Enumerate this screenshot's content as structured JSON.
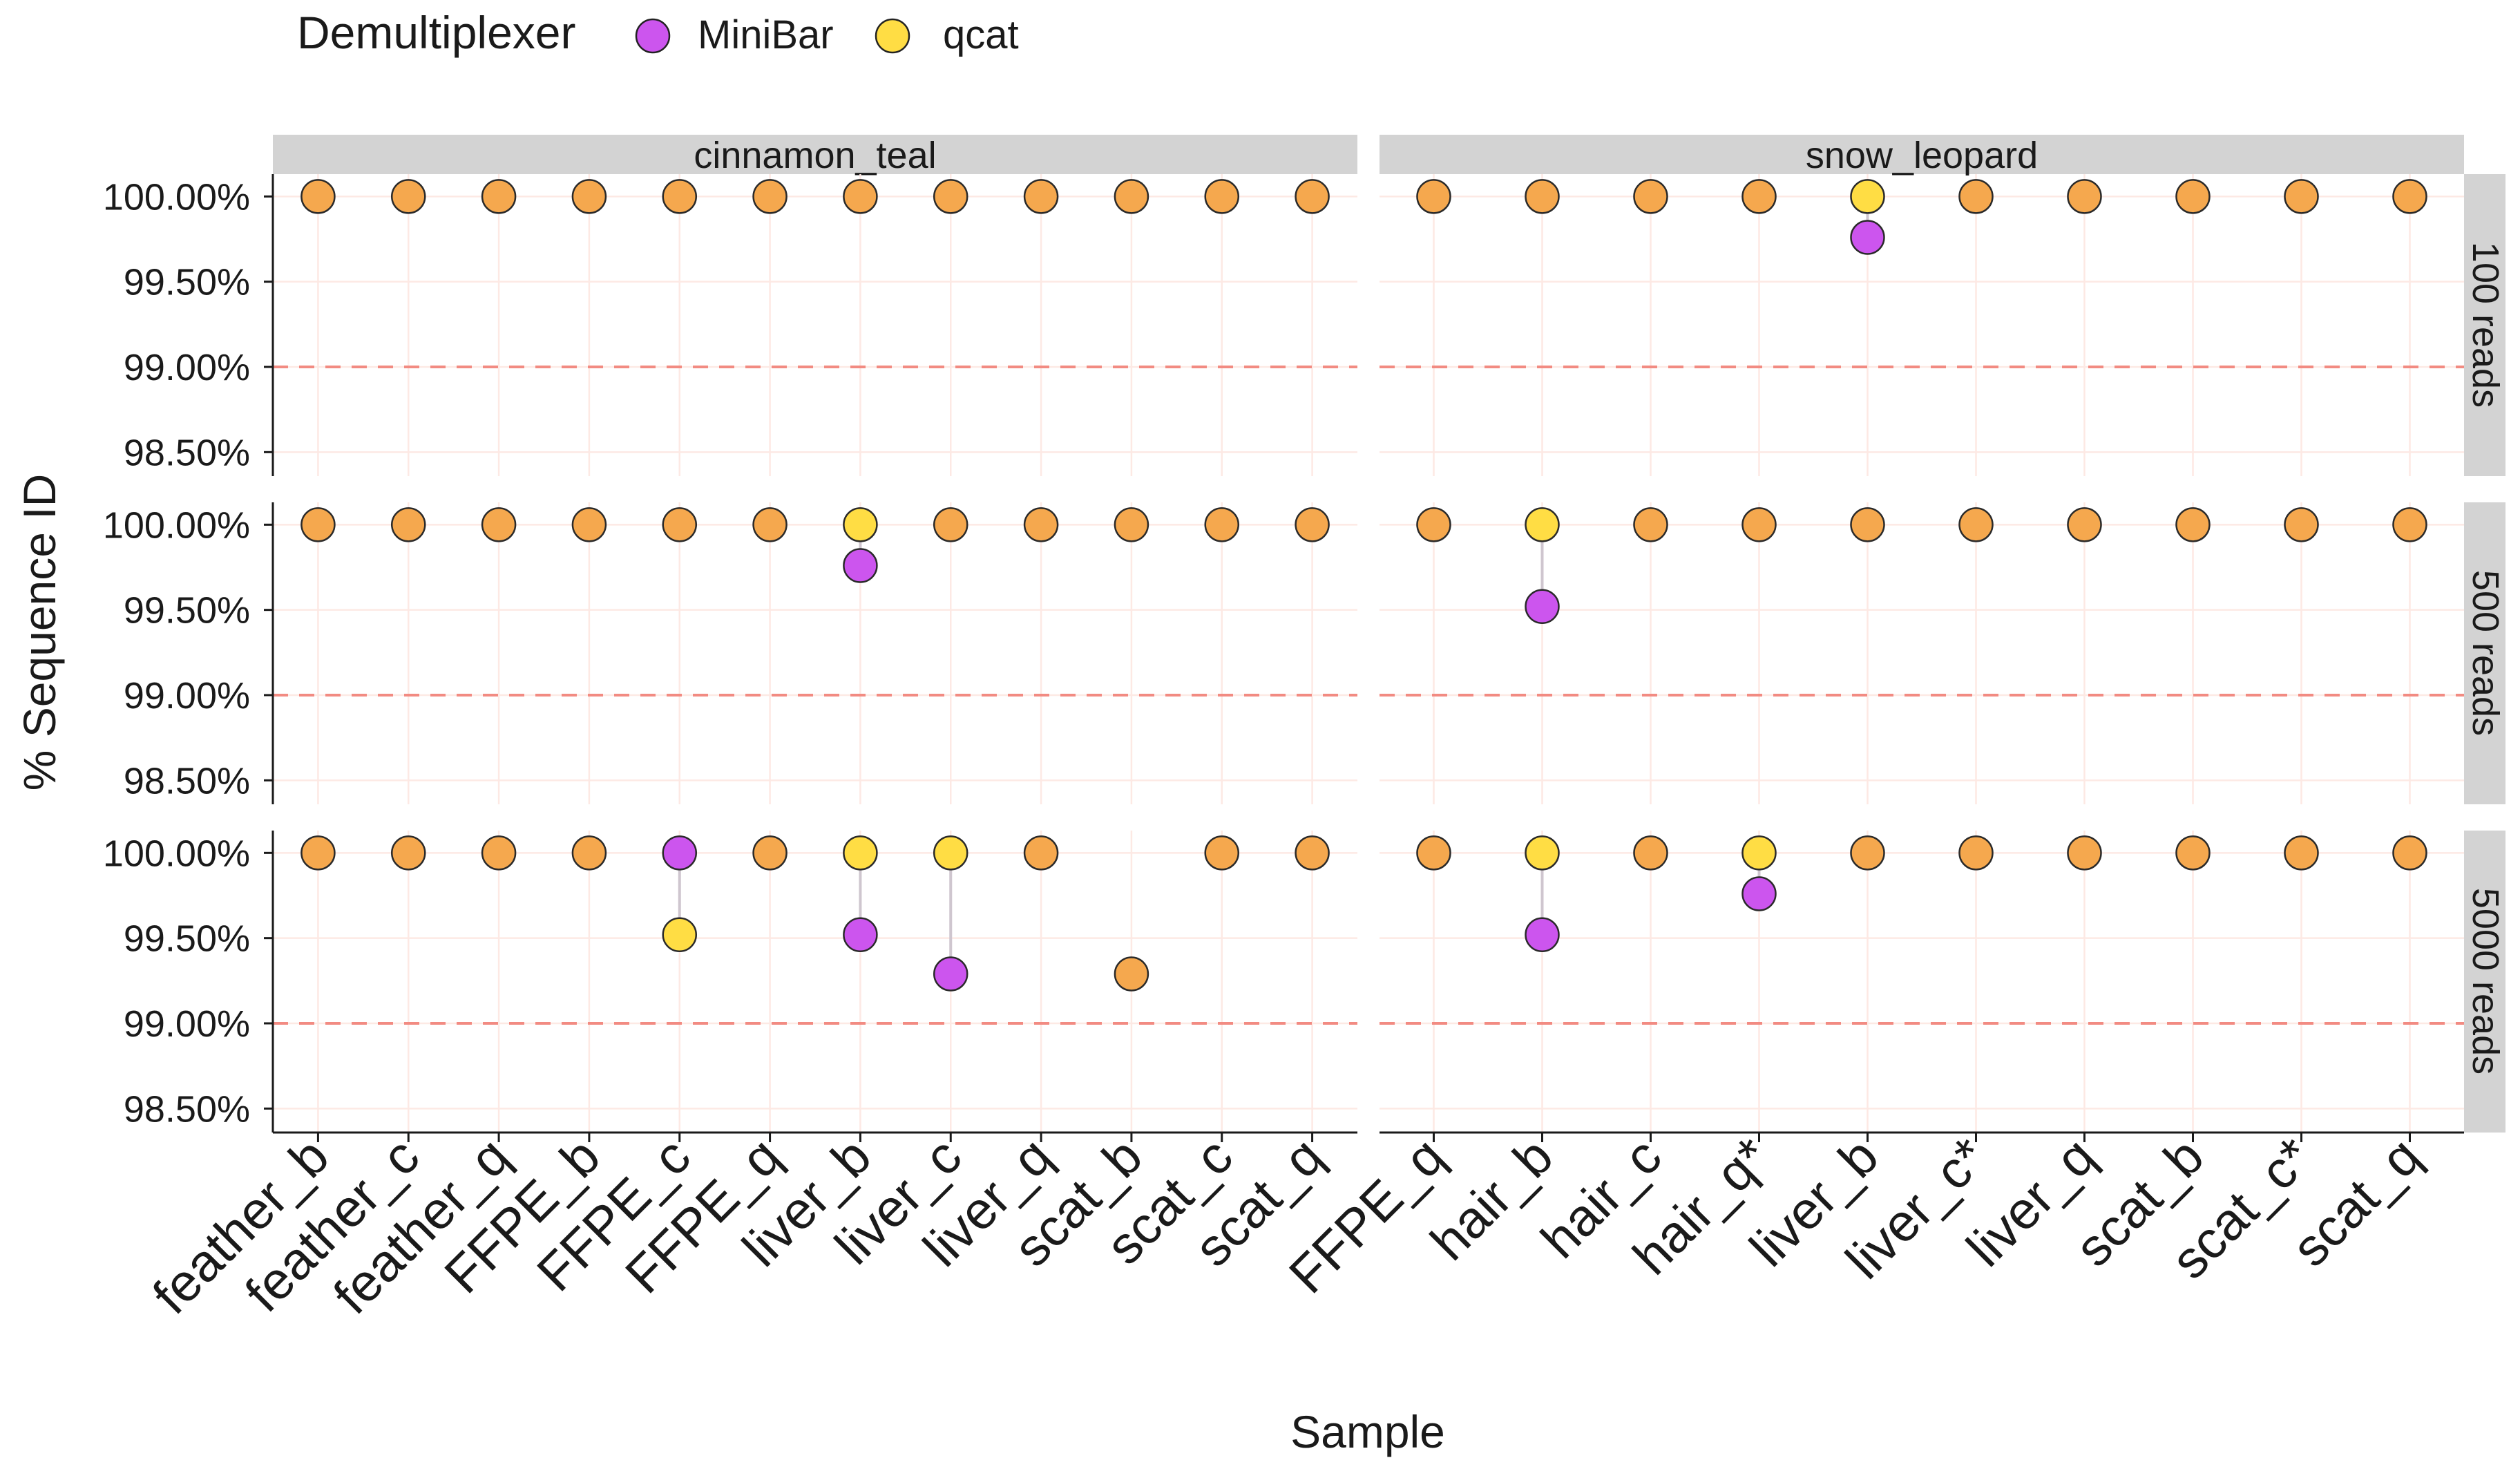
{
  "chart_data": {
    "type": "scatter",
    "title": "",
    "xlabel": "Sample",
    "ylabel": "% Sequence ID",
    "ylim": [
      98.4,
      100.05
    ],
    "yticks": [
      98.5,
      99.0,
      99.5,
      100.0
    ],
    "ytick_labels": [
      "98.50%",
      "99.00%",
      "99.50%",
      "100.00%"
    ],
    "reference_line": 99.0,
    "grid": true,
    "legend": {
      "title": "Demultiplexer",
      "position": "top-left",
      "entries": [
        {
          "name": "MiniBar",
          "color": "#cc55ee"
        },
        {
          "name": "qcat",
          "color": "#ffdd44"
        }
      ]
    },
    "overlap_color": "#f5a84e",
    "column_facets": [
      {
        "label": "cinnamon_teal",
        "categories": [
          "feather_b",
          "feather_c",
          "feather_q",
          "FFPE_b",
          "FFPE_c",
          "FFPE_q",
          "liver_b",
          "liver_c",
          "liver_q",
          "scat_b",
          "scat_c",
          "scat_q"
        ]
      },
      {
        "label": "snow_leopard",
        "categories": [
          "FFPE_q",
          "hair_b",
          "hair_c",
          "hair_q*",
          "liver_b",
          "liver_c*",
          "liver_q",
          "scat_b",
          "scat_c*",
          "scat_q"
        ]
      }
    ],
    "row_facets": [
      "100 reads",
      "500 reads",
      "5000 reads"
    ],
    "panels": [
      {
        "column": "cinnamon_teal",
        "row": "100 reads",
        "MiniBar": [
          100,
          100,
          100,
          100,
          100,
          100,
          100,
          100,
          100,
          100,
          100,
          100
        ],
        "qcat": [
          100,
          100,
          100,
          100,
          100,
          100,
          100,
          100,
          100,
          100,
          100,
          100
        ]
      },
      {
        "column": "snow_leopard",
        "row": "100 reads",
        "MiniBar": [
          100,
          100,
          100,
          100,
          99.76,
          100,
          100,
          100,
          100,
          100
        ],
        "qcat": [
          100,
          100,
          100,
          100,
          100,
          100,
          100,
          100,
          100,
          100
        ]
      },
      {
        "column": "cinnamon_teal",
        "row": "500 reads",
        "MiniBar": [
          100,
          100,
          100,
          100,
          100,
          100,
          99.76,
          100,
          100,
          100,
          100,
          100
        ],
        "qcat": [
          100,
          100,
          100,
          100,
          100,
          100,
          100,
          100,
          100,
          100,
          100,
          100
        ]
      },
      {
        "column": "snow_leopard",
        "row": "500 reads",
        "MiniBar": [
          100,
          99.52,
          100,
          100,
          100,
          100,
          100,
          100,
          100,
          100
        ],
        "qcat": [
          100,
          100,
          100,
          100,
          100,
          100,
          100,
          100,
          100,
          100
        ]
      },
      {
        "column": "cinnamon_teal",
        "row": "5000 reads",
        "MiniBar": [
          100,
          100,
          100,
          100,
          100,
          100,
          99.52,
          99.29,
          100,
          99.29,
          100,
          100
        ],
        "qcat": [
          100,
          100,
          100,
          100,
          99.52,
          100,
          100,
          100,
          100,
          99.29,
          100,
          100
        ]
      },
      {
        "column": "snow_leopard",
        "row": "5000 reads",
        "MiniBar": [
          100,
          99.52,
          100,
          99.76,
          100,
          100,
          100,
          100,
          100,
          100
        ],
        "qcat": [
          100,
          100,
          100,
          100,
          100,
          100,
          100,
          100,
          100,
          100
        ]
      }
    ]
  }
}
